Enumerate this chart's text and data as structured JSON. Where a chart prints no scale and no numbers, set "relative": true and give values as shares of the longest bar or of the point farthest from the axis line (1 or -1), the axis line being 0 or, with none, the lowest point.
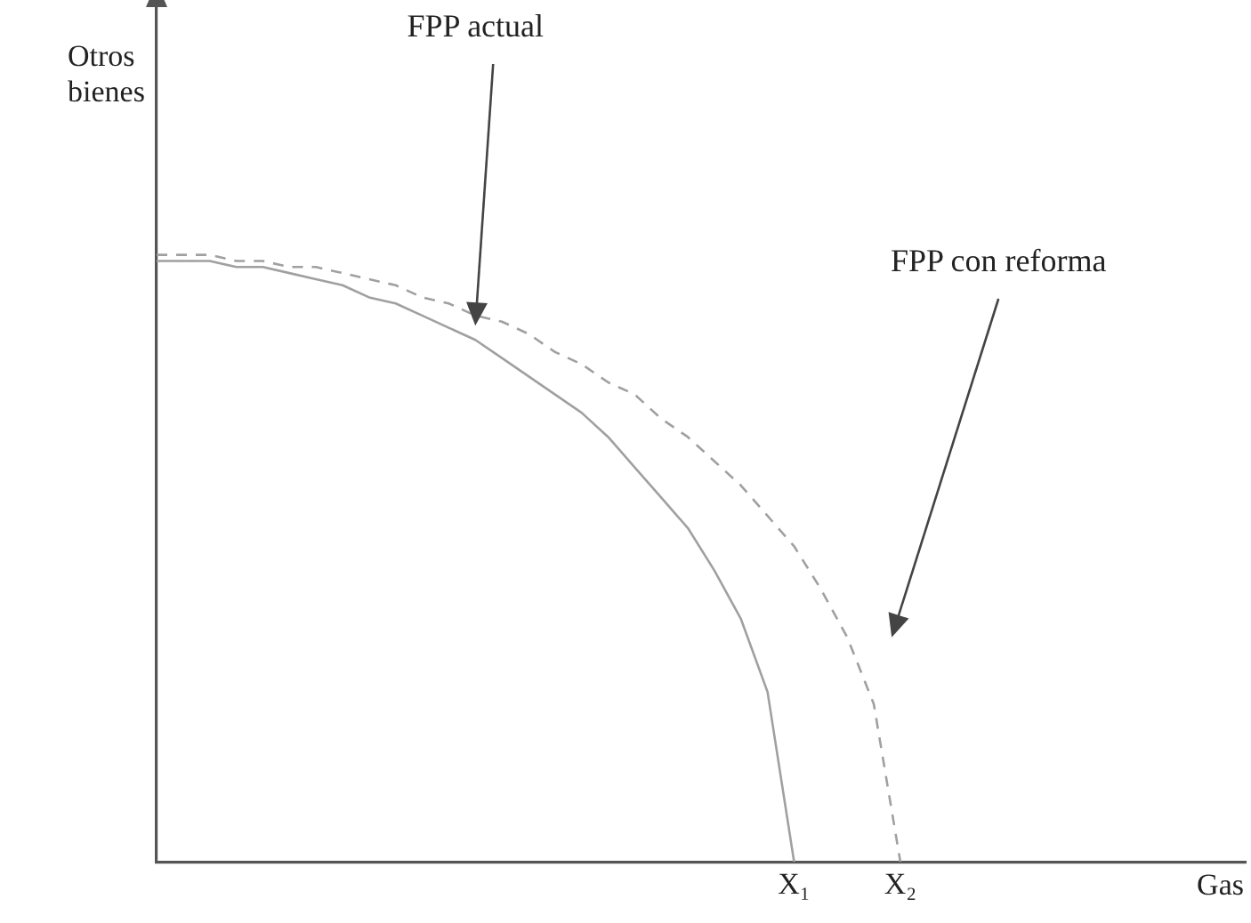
{
  "chart_data": {
    "type": "line",
    "relative": true,
    "ylabel": "Otros bienes",
    "xlabel": "Gas",
    "categories": [
      null,
      null,
      null,
      null,
      null,
      null,
      null,
      null,
      null,
      null,
      null,
      null,
      null,
      null,
      null,
      null,
      null,
      null,
      null,
      null,
      null,
      null,
      null,
      null,
      "X₁",
      null,
      null,
      null,
      "X₂",
      null,
      null,
      null,
      null,
      null,
      null,
      null,
      null,
      null,
      null,
      null,
      null,
      null
    ],
    "grid": false,
    "legend": false,
    "marker": "none",
    "series": [
      {
        "color": "#a0a0a0",
        "line_style": "solid",
        "values": [
          0.99,
          0.99,
          0.99,
          0.98,
          0.98,
          0.97,
          0.96,
          0.95,
          0.93,
          0.92,
          0.9,
          0.88,
          0.86,
          0.83,
          0.8,
          0.77,
          0.74,
          0.7,
          0.65,
          0.6,
          0.55,
          0.48,
          0.4,
          0.28,
          0,
          null,
          null,
          null,
          null,
          null,
          null,
          null,
          null,
          null,
          null,
          null,
          null,
          null,
          null,
          null,
          null,
          null
        ]
      },
      {
        "color": "#a0a0a0",
        "line_style": "dashed",
        "values": [
          1,
          1,
          1,
          0.99,
          0.99,
          0.98,
          0.98,
          0.97,
          0.96,
          0.95,
          0.93,
          0.92,
          0.9,
          0.89,
          0.87,
          0.84,
          0.82,
          0.79,
          0.77,
          0.73,
          0.7,
          0.66,
          0.62,
          0.57,
          0.52,
          0.45,
          0.37,
          0.26,
          0,
          null,
          null,
          null,
          null,
          null,
          null,
          null,
          null,
          null,
          null,
          null,
          null,
          null
        ]
      }
    ],
    "annotations": [
      "FPP actual",
      "FPP con reforma"
    ]
  }
}
